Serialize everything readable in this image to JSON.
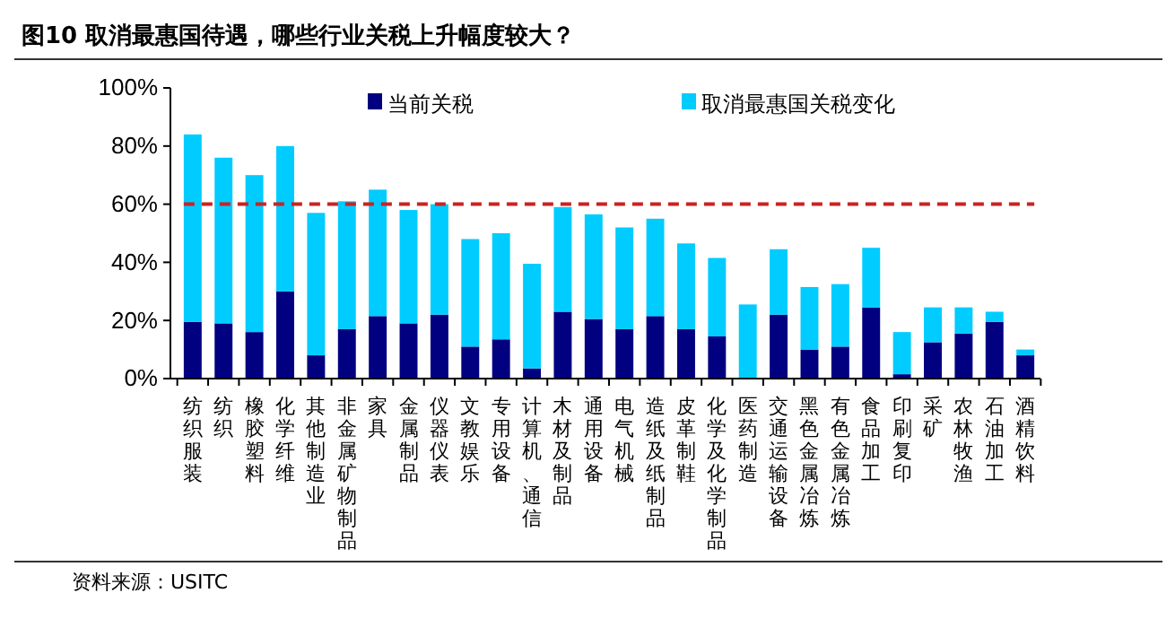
{
  "chart_data": {
    "type": "bar",
    "stacked": true,
    "title": "图10 取消最惠国待遇，哪些行业关税上升幅度较大？",
    "categories": [
      "纺织服装",
      "纺织",
      "橡胶塑料",
      "化学纤维",
      "其他制造业",
      "非金属矿物制品",
      "家具",
      "金属制品",
      "仪器仪表",
      "文教娱乐",
      "专用设备",
      "计算机、通信",
      "木材及制品",
      "通用设备",
      "电气机械",
      "造纸及纸制品",
      "皮革制鞋",
      "化学及化学制品",
      "医药制造",
      "交通运输设备",
      "黑色金属冶炼",
      "有色金属冶炼",
      "食品加工",
      "印刷复印",
      "采矿",
      "农林牧渔",
      "石油加工",
      "酒精饮料"
    ],
    "series": [
      {
        "name": "当前关税",
        "color": "#000080",
        "values": [
          19.5,
          19,
          16,
          30,
          8,
          17,
          21.5,
          19,
          22,
          11,
          13.5,
          3.5,
          23,
          20.5,
          17,
          21.5,
          17,
          14.5,
          0,
          22,
          10,
          11,
          24.5,
          1.5,
          12.5,
          15.5,
          19.5,
          8
        ]
      },
      {
        "name": "取消最惠国关税变化",
        "color": "#00ccff",
        "values": [
          64.5,
          57,
          54,
          50,
          49,
          44,
          43.5,
          39,
          38,
          37,
          36.5,
          36,
          36,
          36,
          35,
          33.5,
          29.5,
          27,
          25.5,
          22.5,
          21.5,
          21.5,
          20.5,
          14.5,
          12,
          9,
          3.5,
          2
        ]
      }
    ],
    "ylim": [
      0,
      100
    ],
    "yticks": [
      {
        "value": 0,
        "label": "0%"
      },
      {
        "value": 20,
        "label": "20%"
      },
      {
        "value": 40,
        "label": "40%"
      },
      {
        "value": 60,
        "label": "60%"
      },
      {
        "value": 80,
        "label": "80%"
      },
      {
        "value": 100,
        "label": "100%"
      }
    ],
    "ref_lines": [
      {
        "axis": "y",
        "value": 60,
        "color": "#cc2222",
        "line_style": "dashed"
      }
    ],
    "legend": "top",
    "annotations": [
      "资料来源：USITC"
    ]
  }
}
